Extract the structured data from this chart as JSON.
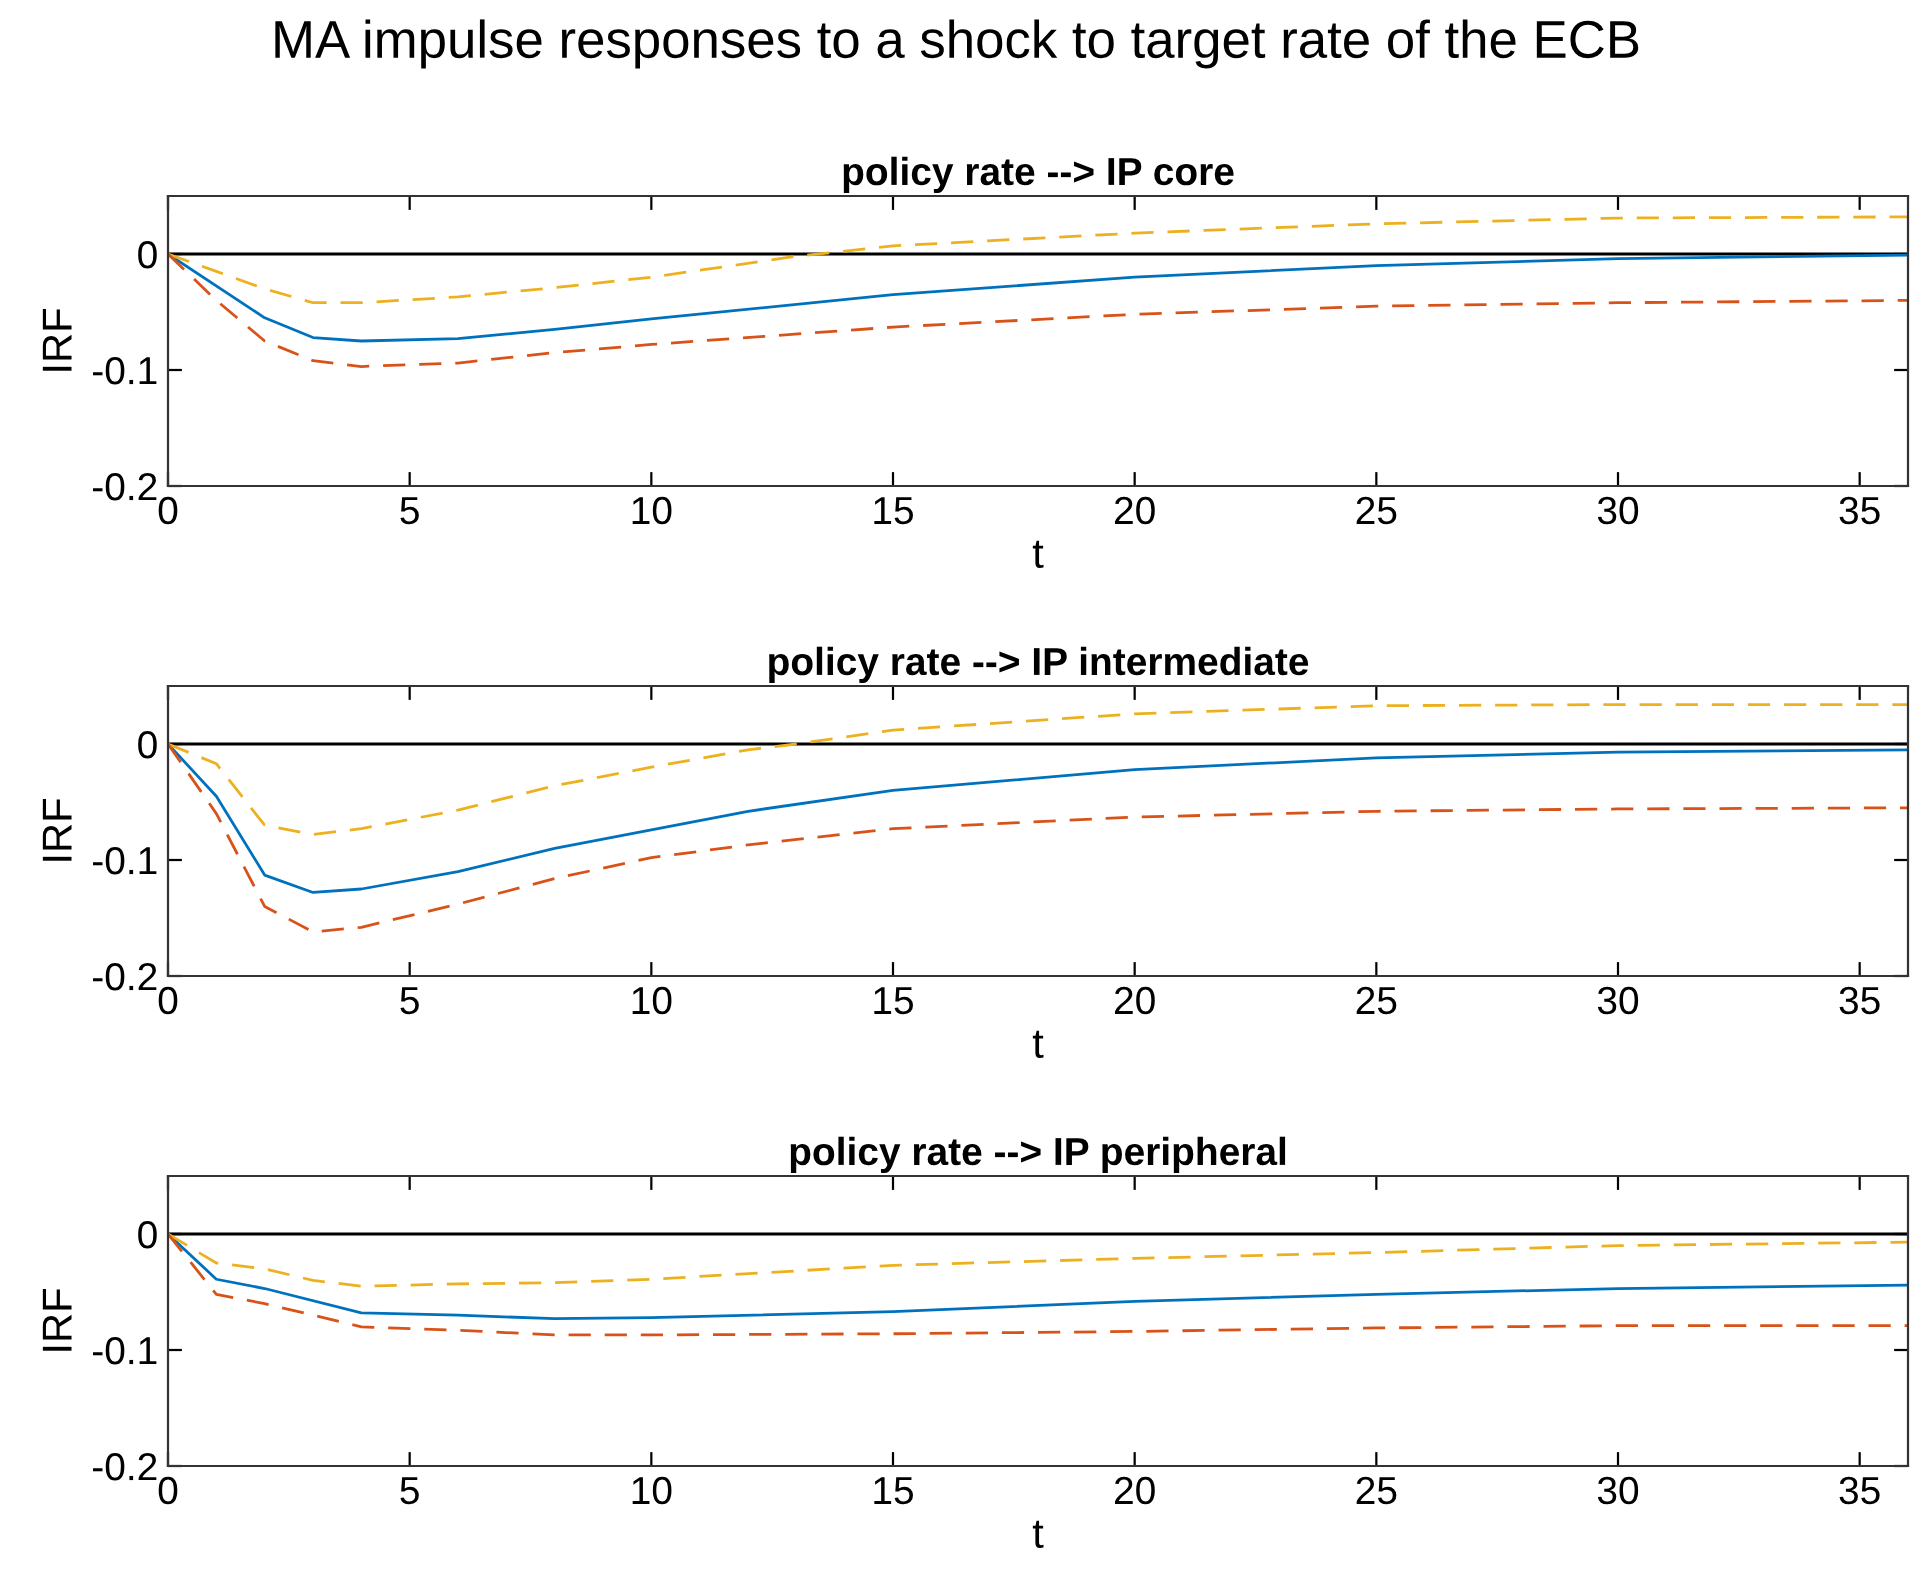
{
  "chart_data": [
    {
      "type": "line",
      "title": "policy rate --> IP core",
      "annotations": [
        "MA impulse responses to a shock to target rate of the ECB"
      ],
      "xlabel": "t",
      "ylabel": "IRF",
      "xlim": [
        0,
        36
      ],
      "ylim": [
        -0.2,
        0.05
      ],
      "xticks": [
        0,
        5,
        10,
        15,
        20,
        25,
        30,
        35
      ],
      "yticks": [
        -0.2,
        -0.1,
        0
      ],
      "grid": false,
      "ref_lines": [
        {
          "axis": "y",
          "value": 0,
          "color": "#000000"
        }
      ],
      "series": [
        {
          "color": "#0072bd",
          "line_style": "solid",
          "x": [
            0,
            2,
            3,
            4,
            6,
            8,
            10,
            15,
            20,
            25,
            30,
            36
          ],
          "values": [
            0,
            -0.055,
            -0.072,
            -0.075,
            -0.073,
            -0.065,
            -0.056,
            -0.035,
            -0.02,
            -0.01,
            -0.004,
            -0.001
          ]
        },
        {
          "color": "#edb120",
          "line_style": "dashed",
          "x": [
            0,
            1,
            2,
            3,
            4,
            6,
            8,
            10,
            13,
            15,
            20,
            25,
            30,
            36
          ],
          "values": [
            0,
            -0.015,
            -0.03,
            -0.042,
            -0.042,
            -0.037,
            -0.029,
            -0.02,
            -0.002,
            0.007,
            0.018,
            0.026,
            0.031,
            0.032
          ]
        },
        {
          "color": "#d95319",
          "line_style": "dashed",
          "x": [
            0,
            1,
            2,
            3,
            4,
            6,
            8,
            10,
            15,
            20,
            25,
            30,
            36
          ],
          "values": [
            0,
            -0.04,
            -0.075,
            -0.092,
            -0.097,
            -0.094,
            -0.085,
            -0.078,
            -0.063,
            -0.052,
            -0.045,
            -0.042,
            -0.04
          ]
        }
      ]
    },
    {
      "type": "line",
      "title": "policy rate --> IP intermediate",
      "xlabel": "t",
      "ylabel": "IRF",
      "xlim": [
        0,
        36
      ],
      "ylim": [
        -0.2,
        0.05
      ],
      "xticks": [
        0,
        5,
        10,
        15,
        20,
        25,
        30,
        35
      ],
      "yticks": [
        -0.2,
        -0.1,
        0
      ],
      "grid": false,
      "ref_lines": [
        {
          "axis": "y",
          "value": 0,
          "color": "#000000"
        }
      ],
      "series": [
        {
          "color": "#0072bd",
          "line_style": "solid",
          "x": [
            0,
            1,
            2,
            3,
            4,
            6,
            8,
            10,
            12,
            15,
            20,
            25,
            30,
            36
          ],
          "values": [
            0,
            -0.045,
            -0.113,
            -0.128,
            -0.125,
            -0.11,
            -0.09,
            -0.074,
            -0.058,
            -0.04,
            -0.022,
            -0.012,
            -0.007,
            -0.005
          ]
        },
        {
          "color": "#edb120",
          "line_style": "dashed",
          "x": [
            0,
            1,
            2,
            3,
            4,
            6,
            8,
            10,
            12,
            13,
            15,
            20,
            25,
            30,
            36
          ],
          "values": [
            0,
            -0.017,
            -0.07,
            -0.078,
            -0.073,
            -0.057,
            -0.036,
            -0.02,
            -0.005,
            0.0,
            0.012,
            0.026,
            0.033,
            0.034,
            0.034
          ]
        },
        {
          "color": "#d95319",
          "line_style": "dashed",
          "x": [
            0,
            1,
            2,
            3,
            4,
            6,
            8,
            10,
            12,
            15,
            20,
            25,
            30,
            36
          ],
          "values": [
            0,
            -0.06,
            -0.14,
            -0.162,
            -0.158,
            -0.138,
            -0.116,
            -0.098,
            -0.087,
            -0.073,
            -0.063,
            -0.058,
            -0.056,
            -0.055
          ]
        }
      ]
    },
    {
      "type": "line",
      "title": "policy rate --> IP peripheral",
      "xlabel": "t",
      "ylabel": "IRF",
      "xlim": [
        0,
        36
      ],
      "ylim": [
        -0.2,
        0.05
      ],
      "xticks": [
        0,
        5,
        10,
        15,
        20,
        25,
        30,
        35
      ],
      "yticks": [
        -0.2,
        -0.1,
        0
      ],
      "grid": false,
      "ref_lines": [
        {
          "axis": "y",
          "value": 0,
          "color": "#000000"
        }
      ],
      "series": [
        {
          "color": "#0072bd",
          "line_style": "solid",
          "x": [
            0,
            1,
            2,
            4,
            6,
            8,
            10,
            15,
            20,
            25,
            30,
            36
          ],
          "values": [
            0,
            -0.039,
            -0.047,
            -0.068,
            -0.07,
            -0.073,
            -0.072,
            -0.067,
            -0.058,
            -0.052,
            -0.047,
            -0.044
          ]
        },
        {
          "color": "#edb120",
          "line_style": "dashed",
          "x": [
            0,
            1,
            2,
            3,
            4,
            6,
            8,
            10,
            15,
            20,
            25,
            30,
            36
          ],
          "values": [
            0,
            -0.025,
            -0.03,
            -0.04,
            -0.045,
            -0.043,
            -0.042,
            -0.039,
            -0.027,
            -0.021,
            -0.016,
            -0.01,
            -0.007
          ]
        },
        {
          "color": "#d95319",
          "line_style": "dashed",
          "x": [
            0,
            1,
            2,
            4,
            6,
            8,
            10,
            15,
            20,
            25,
            30,
            36
          ],
          "values": [
            0,
            -0.052,
            -0.06,
            -0.08,
            -0.083,
            -0.087,
            -0.087,
            -0.086,
            -0.084,
            -0.081,
            -0.079,
            -0.079
          ]
        }
      ]
    }
  ]
}
